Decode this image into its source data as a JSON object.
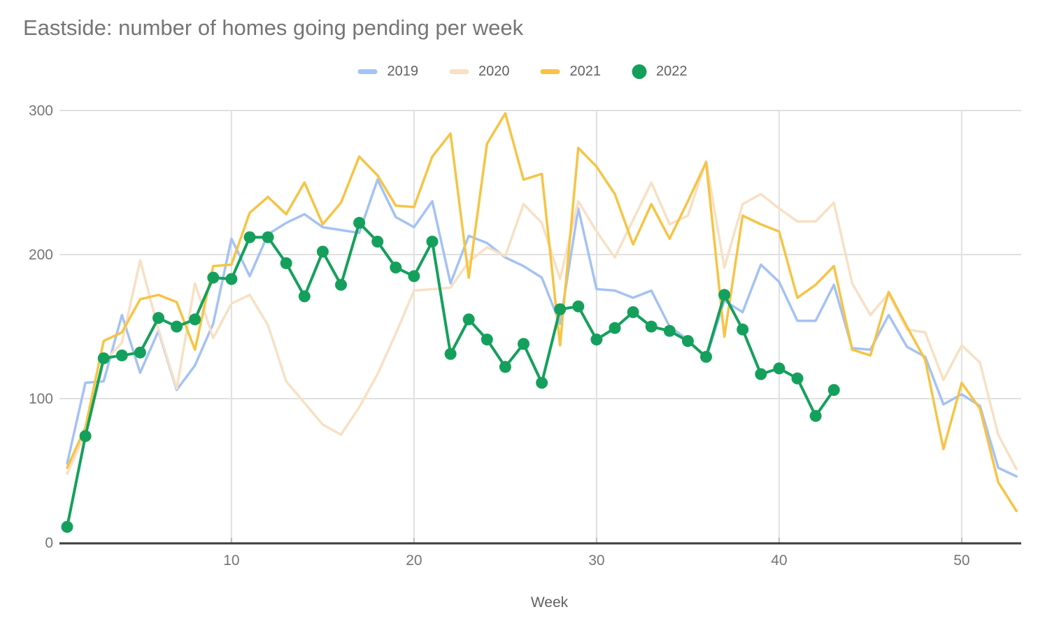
{
  "title": "Eastside: number of homes going pending per week",
  "chart_data": {
    "type": "line",
    "title": "Eastside: number of homes going pending per week",
    "xlabel": "Week",
    "ylabel": "",
    "x_start_week": 1,
    "x_ticks": [
      10,
      20,
      30,
      40,
      50
    ],
    "y_ticks": [
      0,
      100,
      200,
      300
    ],
    "xlim": [
      1,
      53.5
    ],
    "ylim": [
      0,
      300
    ],
    "grid": true,
    "legend_position": "top",
    "series": [
      {
        "name": "2019",
        "color": "#A4C2F4",
        "style": "line",
        "values": [
          55,
          111,
          112,
          158,
          118,
          147,
          106,
          123,
          152,
          211,
          185,
          214,
          222,
          228,
          219,
          217,
          215,
          252,
          226,
          219,
          237,
          180,
          213,
          208,
          198,
          192,
          184,
          152,
          232,
          176,
          175,
          170,
          175,
          150,
          141,
          128,
          168,
          160,
          193,
          181,
          154,
          154,
          179,
          135,
          134,
          158,
          136,
          129,
          96,
          103,
          95,
          52,
          46
        ]
      },
      {
        "name": "2020",
        "color": "#F8E0C4",
        "style": "line",
        "values": [
          48,
          76,
          125,
          139,
          196,
          148,
          107,
          180,
          142,
          166,
          172,
          151,
          112,
          97,
          82,
          75,
          94,
          117,
          145,
          175,
          176,
          177,
          195,
          205,
          199,
          235,
          222,
          183,
          237,
          216,
          198,
          224,
          250,
          221,
          227,
          265,
          191,
          235,
          242,
          232,
          223,
          223,
          236,
          180,
          158,
          173,
          148,
          146,
          113,
          137,
          125,
          75,
          51
        ]
      },
      {
        "name": "2021",
        "color": "#F6C445",
        "style": "line",
        "values": [
          52,
          80,
          140,
          146,
          169,
          172,
          167,
          134,
          192,
          193,
          229,
          240,
          228,
          250,
          221,
          236,
          268,
          255,
          234,
          233,
          268,
          284,
          184,
          277,
          298,
          252,
          256,
          137,
          274,
          261,
          242,
          207,
          235,
          211,
          237,
          264,
          143,
          227,
          221,
          216,
          170,
          179,
          192,
          134,
          130,
          174,
          150,
          127,
          65,
          111,
          93,
          42,
          22
        ]
      },
      {
        "name": "2022",
        "color": "#14A05C",
        "style": "line+markers",
        "values": [
          11,
          74,
          128,
          130,
          132,
          156,
          150,
          155,
          184,
          183,
          212,
          212,
          194,
          171,
          202,
          179,
          222,
          209,
          191,
          185,
          209,
          131,
          155,
          141,
          122,
          138,
          111,
          162,
          164,
          141,
          149,
          160,
          150,
          147,
          140,
          129,
          172,
          148,
          117,
          121,
          114,
          88,
          106
        ]
      }
    ]
  },
  "styles": {
    "grid_color": "#E0E0E0",
    "axis_line_color": "#3C4043",
    "tick_mark_color": "#BDBDBD",
    "tick_label_color": "#757575",
    "axis_title_color": "#616161",
    "title_color": "#757575"
  }
}
